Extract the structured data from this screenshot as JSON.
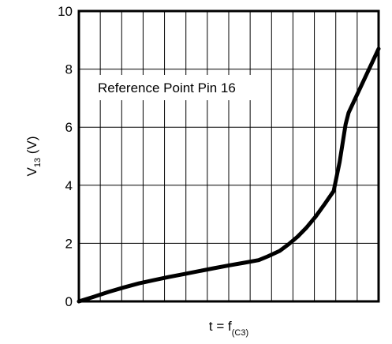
{
  "chart_data": {
    "type": "line",
    "title": "",
    "xlabel": {
      "main": "t = f",
      "sub": "(C3)"
    },
    "ylabel": {
      "main": "V",
      "sub": "13",
      "suffix": " (V)"
    },
    "ylim": [
      0,
      10
    ],
    "yticks": [
      "0",
      "2",
      "4",
      "6",
      "8",
      "10"
    ],
    "x_ticks_labeled": false,
    "x_gridlines": 14,
    "y_gridlines": 5,
    "grid": true,
    "annotation": "Reference Point Pin 16",
    "series": [
      {
        "x_fraction": [
          0.0,
          0.05,
          0.1,
          0.15,
          0.2,
          0.25,
          0.3,
          0.35,
          0.4,
          0.45,
          0.5,
          0.55,
          0.6,
          0.63,
          0.67,
          0.7,
          0.73,
          0.76,
          0.79,
          0.82,
          0.85,
          0.87,
          0.89,
          0.9,
          1.0
        ],
        "y": [
          0.0,
          0.16,
          0.33,
          0.48,
          0.62,
          0.73,
          0.84,
          0.94,
          1.04,
          1.14,
          1.24,
          1.33,
          1.42,
          1.55,
          1.74,
          1.97,
          2.23,
          2.55,
          2.92,
          3.35,
          3.8,
          4.8,
          6.1,
          6.5,
          8.7
        ]
      }
    ]
  },
  "colors": {
    "line": "#000000",
    "grid": "#000000",
    "background": "#ffffff"
  }
}
